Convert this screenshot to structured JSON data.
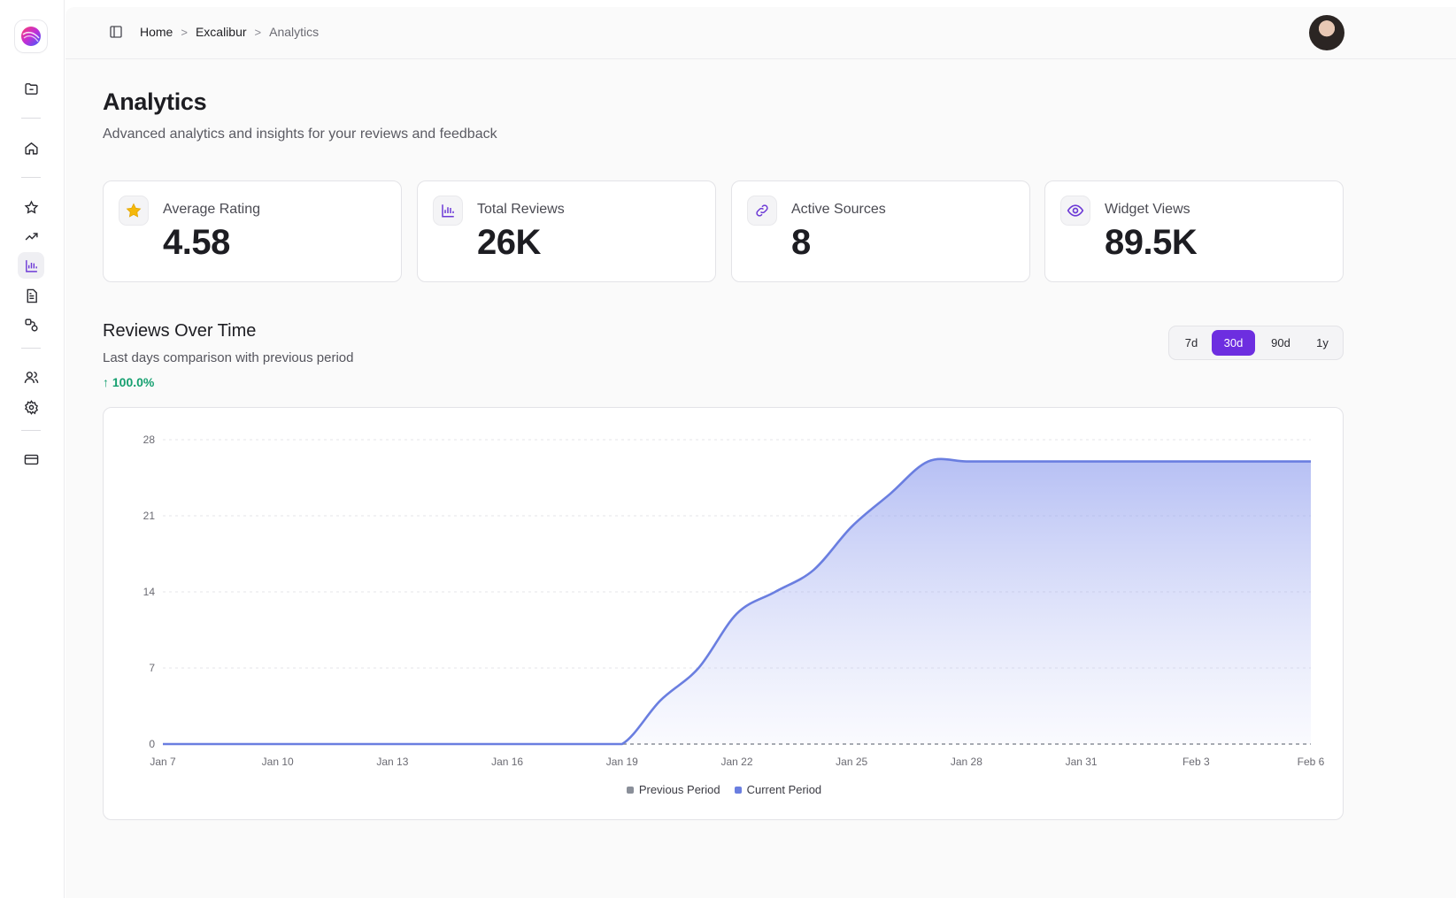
{
  "breadcrumb": {
    "items": [
      "Home",
      "Excalibur",
      "Analytics"
    ]
  },
  "page": {
    "title": "Analytics",
    "subtitle": "Advanced analytics and insights for your reviews and feedback"
  },
  "stats": [
    {
      "label": "Average Rating",
      "value": "4.58",
      "icon": "star-icon",
      "color": "#f5b80b"
    },
    {
      "label": "Total Reviews",
      "value": "26K",
      "icon": "bar-chart-icon",
      "color": "#6d3ad6"
    },
    {
      "label": "Active Sources",
      "value": "8",
      "icon": "link-icon",
      "color": "#6d3ad6"
    },
    {
      "label": "Widget Views",
      "value": "89.5K",
      "icon": "eye-icon",
      "color": "#6d3ad6"
    }
  ],
  "section": {
    "title": "Reviews Over Time",
    "subtitle": "Last days comparison with previous period",
    "delta": "↑ 100.0%"
  },
  "range": {
    "options": [
      "7d",
      "30d",
      "90d",
      "1y"
    ],
    "selected": "30d"
  },
  "colors": {
    "accent": "#6d2ee0",
    "current": "#6a7ee0",
    "previous": "#8a8f99",
    "positive": "#16a070"
  },
  "chart_data": {
    "type": "area",
    "x": [
      "Jan 7",
      "Jan 8",
      "Jan 9",
      "Jan 10",
      "Jan 11",
      "Jan 12",
      "Jan 13",
      "Jan 14",
      "Jan 15",
      "Jan 16",
      "Jan 17",
      "Jan 18",
      "Jan 19",
      "Jan 20",
      "Jan 21",
      "Jan 22",
      "Jan 23",
      "Jan 24",
      "Jan 25",
      "Jan 26",
      "Jan 27",
      "Jan 28",
      "Jan 29",
      "Jan 30",
      "Jan 31",
      "Feb 1",
      "Feb 2",
      "Feb 3",
      "Feb 4",
      "Feb 5",
      "Feb 6"
    ],
    "x_ticks": [
      "Jan 7",
      "Jan 10",
      "Jan 13",
      "Jan 16",
      "Jan 19",
      "Jan 22",
      "Jan 25",
      "Jan 28",
      "Jan 31",
      "Feb 3",
      "Feb 6"
    ],
    "y_ticks": [
      0,
      7,
      14,
      21,
      28
    ],
    "ylim": [
      0,
      28
    ],
    "grid": true,
    "legend": "bottom-center",
    "series": [
      {
        "name": "Previous Period",
        "style": "dashed",
        "values": [
          0,
          0,
          0,
          0,
          0,
          0,
          0,
          0,
          0,
          0,
          0,
          0,
          0,
          0,
          0,
          0,
          0,
          0,
          0,
          0,
          0,
          0,
          0,
          0,
          0,
          0,
          0,
          0,
          0,
          0,
          0
        ]
      },
      {
        "name": "Current Period",
        "style": "area",
        "values": [
          0,
          0,
          0,
          0,
          0,
          0,
          0,
          0,
          0,
          0,
          0,
          0,
          0,
          4,
          7,
          12,
          14,
          16,
          20,
          23,
          26,
          26,
          26,
          26,
          26,
          26,
          26,
          26,
          26,
          26,
          26
        ]
      }
    ]
  }
}
